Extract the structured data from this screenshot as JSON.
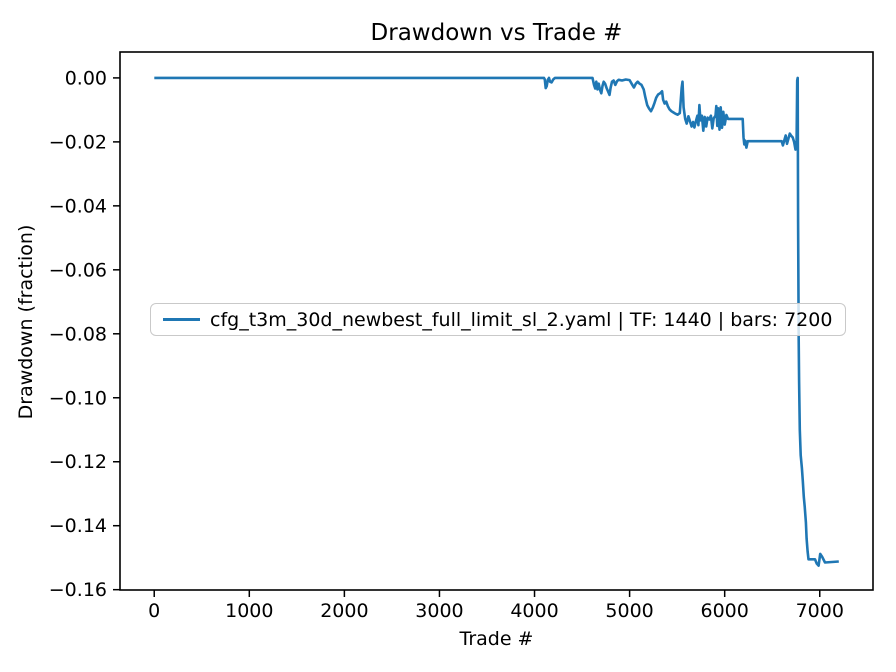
{
  "figure": {
    "background": "#ffffff",
    "text_color": "#000000",
    "spine_color": "#000000",
    "legend_border_color": "#c9c9c9"
  },
  "chart_data": {
    "type": "line",
    "title": "Drawdown vs Trade #",
    "xlabel": "Trade #",
    "ylabel": "Drawdown (fraction)",
    "grid": false,
    "xlim": [
      -360,
      7560
    ],
    "ylim": [
      -0.1601,
      0.0081
    ],
    "x_ticks": [
      {
        "value": 0,
        "label": "0"
      },
      {
        "value": 1000,
        "label": "1000"
      },
      {
        "value": 2000,
        "label": "2000"
      },
      {
        "value": 3000,
        "label": "3000"
      },
      {
        "value": 4000,
        "label": "4000"
      },
      {
        "value": 5000,
        "label": "5000"
      },
      {
        "value": 6000,
        "label": "6000"
      },
      {
        "value": 7000,
        "label": "7000"
      }
    ],
    "y_ticks": [
      {
        "value": 0.0,
        "label": "0.00"
      },
      {
        "value": -0.02,
        "label": "−0.02"
      },
      {
        "value": -0.04,
        "label": "−0.04"
      },
      {
        "value": -0.06,
        "label": "−0.06"
      },
      {
        "value": -0.08,
        "label": "−0.08"
      },
      {
        "value": -0.1,
        "label": "−0.10"
      },
      {
        "value": -0.12,
        "label": "−0.12"
      },
      {
        "value": -0.14,
        "label": "−0.14"
      },
      {
        "value": -0.16,
        "label": "−0.16"
      }
    ],
    "legend": {
      "position": "center-left",
      "entries": [
        {
          "label": "cfg_t3m_30d_newbest_full_limit_sl_2.yaml | TF: 1440 | bars: 7200",
          "color": "#1f77b4"
        }
      ]
    },
    "series": [
      {
        "name": "cfg_t3m_30d_newbest_full_limit_sl_2.yaml | TF: 1440 | bars: 7200",
        "color": "#1f77b4",
        "points": [
          [
            1,
            0
          ],
          [
            4100,
            0
          ],
          [
            4108,
            -0.0005
          ],
          [
            4118,
            -0.0032
          ],
          [
            4128,
            -0.0026
          ],
          [
            4140,
            -0.0006
          ],
          [
            4152,
            0
          ],
          [
            4163,
            -0.0012
          ],
          [
            4180,
            -0.0014
          ],
          [
            4196,
            -0.0005
          ],
          [
            4215,
            0
          ],
          [
            4610,
            0
          ],
          [
            4625,
            -0.0022
          ],
          [
            4638,
            -0.0033
          ],
          [
            4650,
            -0.0012
          ],
          [
            4662,
            -0.0036
          ],
          [
            4675,
            -0.0018
          ],
          [
            4688,
            -0.0036
          ],
          [
            4702,
            -0.0048
          ],
          [
            4715,
            -0.0025
          ],
          [
            4728,
            -0.0012
          ],
          [
            4742,
            -0.0018
          ],
          [
            4758,
            -0.0032
          ],
          [
            4775,
            -0.0043
          ],
          [
            4788,
            -0.0053
          ],
          [
            4800,
            -0.0031
          ],
          [
            4815,
            -0.0012
          ],
          [
            4832,
            -0.0008
          ],
          [
            4850,
            -0.0022
          ],
          [
            4868,
            -0.001
          ],
          [
            4885,
            -0.0006
          ],
          [
            4920,
            -0.0008
          ],
          [
            4960,
            -0.0005
          ],
          [
            5000,
            -0.0007
          ],
          [
            5025,
            -0.002
          ],
          [
            5045,
            -0.003
          ],
          [
            5065,
            -0.0018
          ],
          [
            5085,
            -0.0012
          ],
          [
            5105,
            -0.0018
          ],
          [
            5125,
            -0.0022
          ],
          [
            5148,
            -0.0036
          ],
          [
            5165,
            -0.006
          ],
          [
            5185,
            -0.0085
          ],
          [
            5205,
            -0.0096
          ],
          [
            5225,
            -0.0104
          ],
          [
            5245,
            -0.0092
          ],
          [
            5262,
            -0.0078
          ],
          [
            5280,
            -0.0062
          ],
          [
            5300,
            -0.0052
          ],
          [
            5322,
            -0.0048
          ],
          [
            5342,
            -0.0042
          ],
          [
            5352,
            -0.0068
          ],
          [
            5368,
            -0.008
          ],
          [
            5385,
            -0.0074
          ],
          [
            5402,
            -0.0088
          ],
          [
            5420,
            -0.0098
          ],
          [
            5440,
            -0.0104
          ],
          [
            5462,
            -0.0108
          ],
          [
            5482,
            -0.0112
          ],
          [
            5505,
            -0.0115
          ],
          [
            5528,
            -0.011
          ],
          [
            5548,
            -0.003
          ],
          [
            5556,
            -0.0012
          ],
          [
            5568,
            -0.0092
          ],
          [
            5585,
            -0.0128
          ],
          [
            5600,
            -0.0143
          ],
          [
            5618,
            -0.012
          ],
          [
            5635,
            -0.0136
          ],
          [
            5652,
            -0.0152
          ],
          [
            5668,
            -0.0138
          ],
          [
            5682,
            -0.0155
          ],
          [
            5700,
            -0.0132
          ],
          [
            5713,
            -0.0118
          ],
          [
            5724,
            -0.0148
          ],
          [
            5734,
            -0.0085
          ],
          [
            5745,
            -0.0133
          ],
          [
            5760,
            -0.0118
          ],
          [
            5775,
            -0.0165
          ],
          [
            5790,
            -0.0122
          ],
          [
            5806,
            -0.0152
          ],
          [
            5820,
            -0.0124
          ],
          [
            5838,
            -0.013
          ],
          [
            5855,
            -0.0118
          ],
          [
            5870,
            -0.0158
          ],
          [
            5885,
            -0.0126
          ],
          [
            5903,
            -0.0118
          ],
          [
            5912,
            -0.0088
          ],
          [
            5922,
            -0.015
          ],
          [
            5932,
            -0.0095
          ],
          [
            5945,
            -0.0162
          ],
          [
            5958,
            -0.0092
          ],
          [
            5972,
            -0.0156
          ],
          [
            5985,
            -0.0106
          ],
          [
            6000,
            -0.0146
          ],
          [
            6018,
            -0.0116
          ],
          [
            6035,
            -0.0128
          ],
          [
            6190,
            -0.0128
          ],
          [
            6198,
            -0.0185
          ],
          [
            6206,
            -0.0208
          ],
          [
            6216,
            -0.0196
          ],
          [
            6228,
            -0.0218
          ],
          [
            6242,
            -0.0198
          ],
          [
            6600,
            -0.0198
          ],
          [
            6612,
            -0.0211
          ],
          [
            6628,
            -0.0194
          ],
          [
            6642,
            -0.018
          ],
          [
            6655,
            -0.0206
          ],
          [
            6670,
            -0.019
          ],
          [
            6685,
            -0.0174
          ],
          [
            6700,
            -0.0181
          ],
          [
            6715,
            -0.0186
          ],
          [
            6730,
            -0.02
          ],
          [
            6745,
            -0.0224
          ],
          [
            6756,
            -0.0196
          ],
          [
            6763,
            -0.0008
          ],
          [
            6768,
            0
          ],
          [
            6772,
            -0.045
          ],
          [
            6778,
            -0.082
          ],
          [
            6783,
            -0.095
          ],
          [
            6790,
            -0.11
          ],
          [
            6800,
            -0.118
          ],
          [
            6812,
            -0.122
          ],
          [
            6822,
            -0.126
          ],
          [
            6832,
            -0.131
          ],
          [
            6842,
            -0.134
          ],
          [
            6854,
            -0.139
          ],
          [
            6862,
            -0.144
          ],
          [
            6872,
            -0.148
          ],
          [
            6882,
            -0.1505
          ],
          [
            6950,
            -0.1505
          ],
          [
            6968,
            -0.1518
          ],
          [
            6988,
            -0.1525
          ],
          [
            7005,
            -0.1488
          ],
          [
            7025,
            -0.1497
          ],
          [
            7055,
            -0.1515
          ],
          [
            7200,
            -0.1512
          ]
        ]
      }
    ]
  }
}
